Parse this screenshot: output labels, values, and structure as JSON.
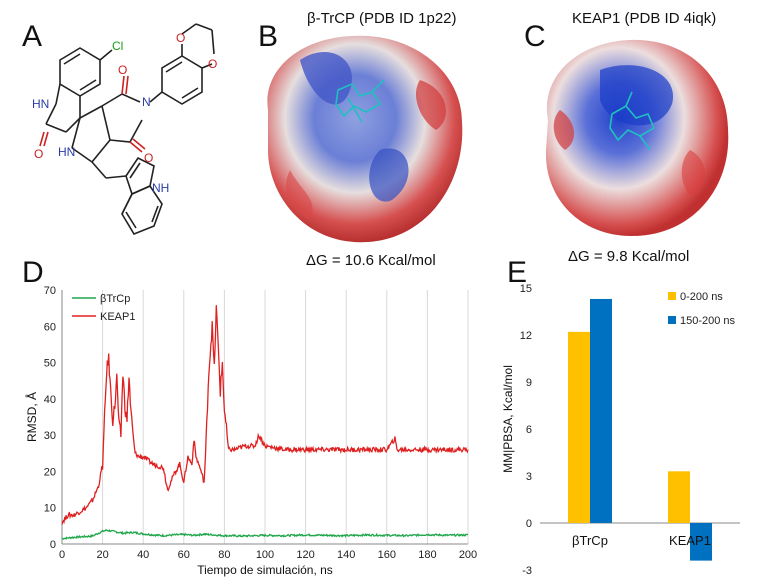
{
  "panels": {
    "A": {
      "letter": "A",
      "atoms": {
        "cl": "Cl",
        "hn1": "HN",
        "hn2": "HN",
        "n": "N",
        "nh": "NH",
        "o1": "O",
        "o2": "O",
        "o3": "O",
        "o4": "O",
        "o5": "O"
      }
    },
    "B": {
      "letter": "B",
      "title": "β-TrCP (PDB ID 1p22)",
      "dg": "ΔG = 10.6 Kcal/mol"
    },
    "C": {
      "letter": "C",
      "title": "KEAP1 (PDB ID 4iqk)",
      "dg": "ΔG = 9.8 Kcal/mol"
    },
    "D": {
      "letter": "D"
    },
    "E": {
      "letter": "E"
    }
  },
  "chart_data": [
    {
      "type": "line",
      "panel": "D",
      "xlabel": "Tiempo de simulación, ns",
      "ylabel": "RMSD, Å",
      "xlim": [
        0,
        200
      ],
      "ylim": [
        0,
        70
      ],
      "xticks": [
        0,
        20,
        40,
        60,
        80,
        100,
        120,
        140,
        160,
        180,
        200
      ],
      "yticks": [
        0,
        10,
        20,
        30,
        40,
        50,
        60,
        70
      ],
      "grid": "vertical",
      "legend": "top-left",
      "series": [
        {
          "name": "βTrCp",
          "color": "#1fa64a",
          "x": [
            0,
            5,
            10,
            15,
            18,
            20,
            22,
            25,
            30,
            35,
            40,
            45,
            50,
            55,
            60,
            65,
            70,
            75,
            80,
            90,
            100,
            110,
            120,
            130,
            140,
            150,
            160,
            170,
            180,
            190,
            200
          ],
          "y": [
            1.5,
            1.8,
            2,
            2.2,
            3,
            3.5,
            3.8,
            3.5,
            3,
            3.2,
            2.8,
            2.5,
            2.3,
            2.5,
            2.6,
            2.4,
            2.7,
            2.5,
            2.3,
            2.2,
            2.4,
            2.3,
            2.5,
            2.4,
            2.3,
            2.5,
            2.4,
            2.3,
            2.6,
            2.4,
            2.5
          ]
        },
        {
          "name": "KEAP1",
          "color": "#e02020",
          "x": [
            0,
            3,
            6,
            9,
            12,
            15,
            18,
            20,
            21,
            22,
            23,
            24,
            25,
            26,
            27,
            28,
            29,
            30,
            31,
            32,
            33,
            34,
            35,
            36,
            38,
            40,
            45,
            50,
            52,
            55,
            58,
            60,
            62,
            64,
            65,
            66,
            68,
            70,
            71,
            72,
            73,
            74,
            75,
            76,
            77,
            78,
            79,
            80,
            82,
            85,
            90,
            95,
            97,
            100,
            110,
            120,
            130,
            140,
            150,
            160,
            164,
            165,
            170,
            180,
            190,
            200
          ],
          "y": [
            6,
            8,
            8,
            9,
            10,
            12,
            16,
            22,
            35,
            48,
            51,
            42,
            34,
            38,
            46,
            33,
            30,
            47,
            38,
            34,
            46,
            36,
            30,
            25,
            24,
            24,
            22,
            21,
            15,
            19,
            22,
            17,
            24,
            22,
            29,
            24,
            21,
            17,
            28,
            44,
            53,
            60,
            48,
            65,
            54,
            42,
            50,
            37,
            26,
            26,
            27,
            27,
            30,
            27,
            26,
            26,
            26,
            26,
            26,
            26,
            29,
            26,
            26,
            26,
            26,
            26
          ]
        }
      ]
    },
    {
      "type": "bar",
      "panel": "E",
      "categories": [
        "βTrCp",
        "KEAP1"
      ],
      "ylabel": "MM|PBSA, Kcal/mol",
      "ylim": [
        -3,
        15
      ],
      "yticks": [
        -3,
        0,
        3,
        6,
        9,
        12,
        15
      ],
      "legend": "top-right",
      "series": [
        {
          "name": "0-200 ns",
          "color": "#ffc000",
          "values": [
            12.2,
            3.3
          ]
        },
        {
          "name": "150-200 ns",
          "color": "#0070c0",
          "values": [
            14.3,
            -2.4
          ]
        }
      ]
    }
  ]
}
